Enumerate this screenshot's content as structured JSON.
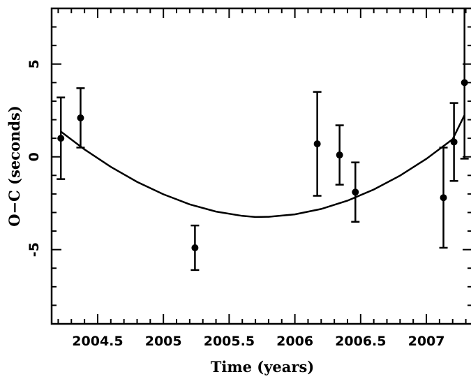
{
  "chart_data": {
    "type": "scatter",
    "title": "",
    "xlabel": "Time (years)",
    "ylabel": "O−C (seconds)",
    "xlim": [
      2004.15,
      2007.35
    ],
    "ylim": [
      -9,
      8
    ],
    "x_ticks": [
      2004.5,
      2005,
      2005.5,
      2006,
      2006.5,
      2007
    ],
    "x_tick_labels": [
      "2004.5",
      "2005",
      "2005.5",
      "2006",
      "2006.5",
      "2007"
    ],
    "y_ticks": [
      5,
      0,
      -5
    ],
    "y_tick_labels": [
      "5",
      "0",
      "-5"
    ],
    "grid": false,
    "series": [
      {
        "type": "scatter-errorbar",
        "points": [
          {
            "x": 2004.22,
            "y": 1.0,
            "err": 2.2
          },
          {
            "x": 2004.37,
            "y": 2.1,
            "err": 1.6
          },
          {
            "x": 2005.24,
            "y": -4.9,
            "err": 1.2
          },
          {
            "x": 2006.17,
            "y": 0.7,
            "err": 2.8
          },
          {
            "x": 2006.34,
            "y": 0.1,
            "err": 1.6
          },
          {
            "x": 2006.46,
            "y": -1.9,
            "err": 1.6
          },
          {
            "x": 2007.13,
            "y": -2.2,
            "err": 2.7
          },
          {
            "x": 2007.21,
            "y": 0.8,
            "err": 2.1
          },
          {
            "x": 2007.29,
            "y": 4.0,
            "err": 4.1
          }
        ]
      },
      {
        "type": "line",
        "curve": "quadratic-fit",
        "x": [
          2004.22,
          2004.4,
          2004.6,
          2004.8,
          2005.0,
          2005.2,
          2005.4,
          2005.6,
          2005.7,
          2005.8,
          2006.0,
          2006.2,
          2006.4,
          2006.6,
          2006.8,
          2007.0,
          2007.2,
          2007.29
        ],
        "y": [
          1.36,
          0.4,
          -0.54,
          -1.35,
          -2.02,
          -2.56,
          -2.95,
          -3.18,
          -3.24,
          -3.23,
          -3.1,
          -2.81,
          -2.36,
          -1.76,
          -1.01,
          -0.11,
          0.95,
          2.25
        ]
      }
    ]
  }
}
